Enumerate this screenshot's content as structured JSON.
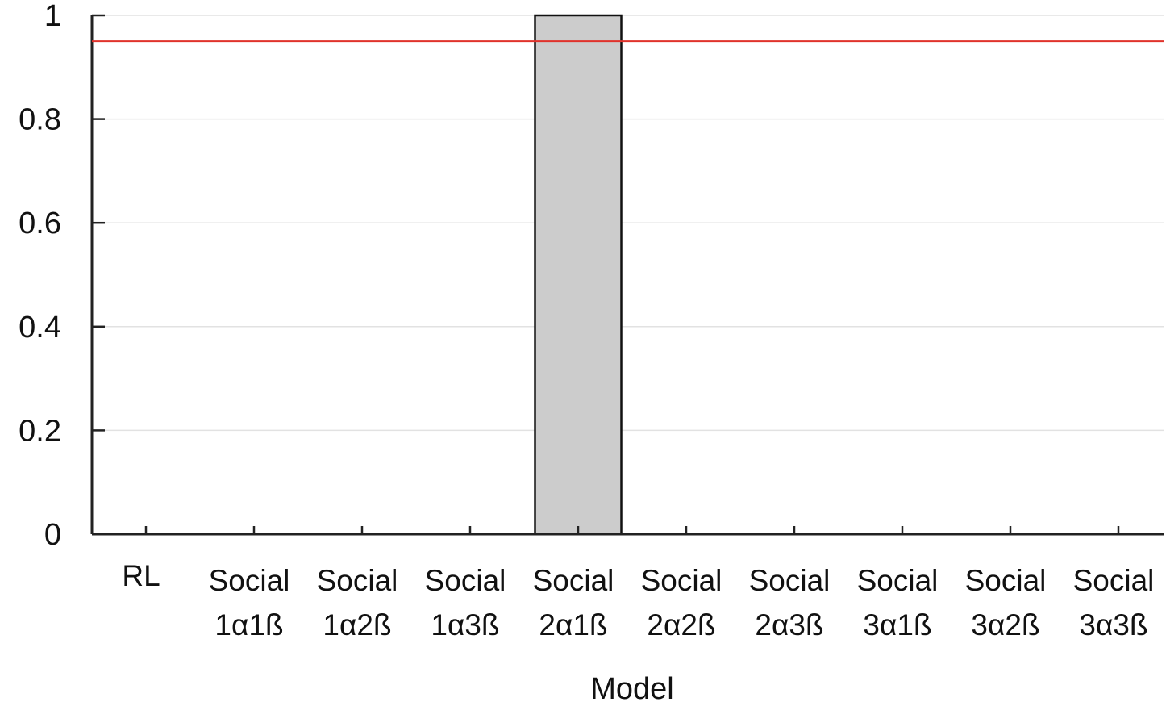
{
  "chart_data": {
    "type": "bar",
    "title": "",
    "xlabel": "Model",
    "ylabel": "",
    "categories": [
      [
        "RL"
      ],
      [
        "Social",
        "1α1ß"
      ],
      [
        "Social",
        "1α2ß"
      ],
      [
        "Social",
        "1α3ß"
      ],
      [
        "Social",
        "2α1ß"
      ],
      [
        "Social",
        "2α2ß"
      ],
      [
        "Social",
        "2α3ß"
      ],
      [
        "Social",
        "3α1ß"
      ],
      [
        "Social",
        "3α2ß"
      ],
      [
        "Social",
        "3α3ß"
      ]
    ],
    "values": [
      0,
      0,
      0,
      0,
      1,
      0,
      0,
      0,
      0,
      0
    ],
    "ylim": [
      0,
      1
    ],
    "yticks": [
      0,
      0.2,
      0.4,
      0.6,
      0.8,
      1
    ],
    "ytick_labels": [
      "0",
      "0.2",
      "0.4",
      "0.6",
      "0.8",
      "1"
    ],
    "reference_line": {
      "y": 0.95,
      "color": "#e0322b"
    },
    "bar_fill": "#cccccc",
    "bar_edge": "#111111",
    "grid": true,
    "grid_color": "#e2e2e2"
  }
}
